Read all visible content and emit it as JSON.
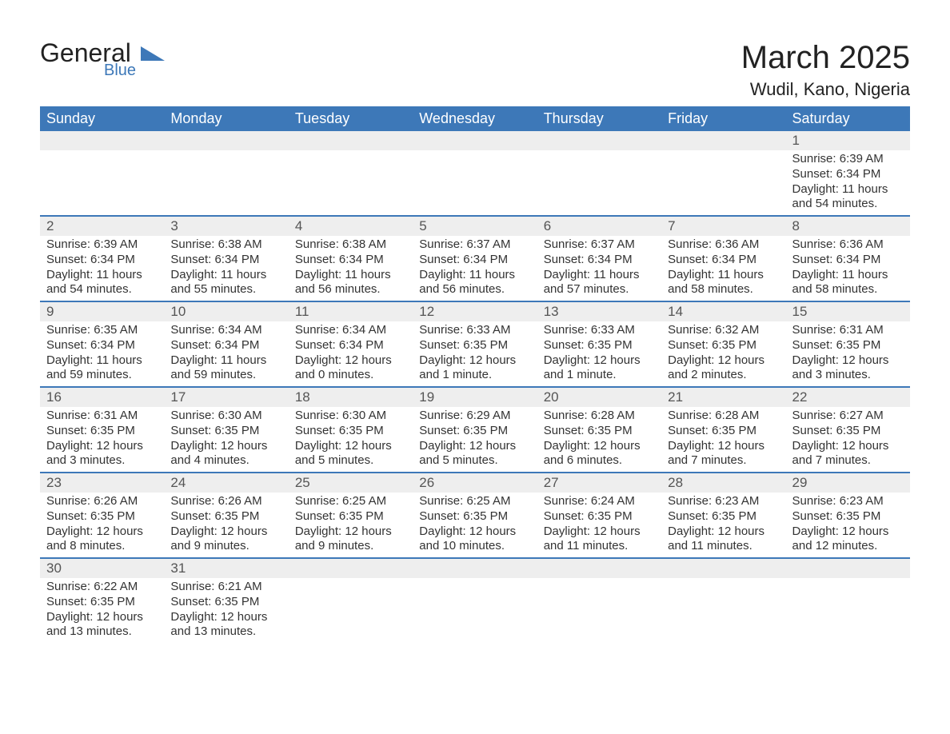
{
  "logo": {
    "text1": "General",
    "text2": "Blue",
    "icon_color": "#3d78b8"
  },
  "title": "March 2025",
  "location": "Wudil, Kano, Nigeria",
  "colors": {
    "header_bg": "#3d78b8",
    "header_text": "#ffffff",
    "row_divider": "#3d78b8",
    "daynum_bg": "#eeeeee",
    "body_text": "#333333",
    "page_bg": "#ffffff"
  },
  "typography": {
    "title_fontsize": 40,
    "location_fontsize": 22,
    "dayheader_fontsize": 18,
    "daynum_fontsize": 17,
    "body_fontsize": 15
  },
  "weekdays": [
    "Sunday",
    "Monday",
    "Tuesday",
    "Wednesday",
    "Thursday",
    "Friday",
    "Saturday"
  ],
  "weeks": [
    [
      null,
      null,
      null,
      null,
      null,
      null,
      {
        "n": "1",
        "sunrise": "Sunrise: 6:39 AM",
        "sunset": "Sunset: 6:34 PM",
        "daylight": "Daylight: 11 hours and 54 minutes."
      }
    ],
    [
      {
        "n": "2",
        "sunrise": "Sunrise: 6:39 AM",
        "sunset": "Sunset: 6:34 PM",
        "daylight": "Daylight: 11 hours and 54 minutes."
      },
      {
        "n": "3",
        "sunrise": "Sunrise: 6:38 AM",
        "sunset": "Sunset: 6:34 PM",
        "daylight": "Daylight: 11 hours and 55 minutes."
      },
      {
        "n": "4",
        "sunrise": "Sunrise: 6:38 AM",
        "sunset": "Sunset: 6:34 PM",
        "daylight": "Daylight: 11 hours and 56 minutes."
      },
      {
        "n": "5",
        "sunrise": "Sunrise: 6:37 AM",
        "sunset": "Sunset: 6:34 PM",
        "daylight": "Daylight: 11 hours and 56 minutes."
      },
      {
        "n": "6",
        "sunrise": "Sunrise: 6:37 AM",
        "sunset": "Sunset: 6:34 PM",
        "daylight": "Daylight: 11 hours and 57 minutes."
      },
      {
        "n": "7",
        "sunrise": "Sunrise: 6:36 AM",
        "sunset": "Sunset: 6:34 PM",
        "daylight": "Daylight: 11 hours and 58 minutes."
      },
      {
        "n": "8",
        "sunrise": "Sunrise: 6:36 AM",
        "sunset": "Sunset: 6:34 PM",
        "daylight": "Daylight: 11 hours and 58 minutes."
      }
    ],
    [
      {
        "n": "9",
        "sunrise": "Sunrise: 6:35 AM",
        "sunset": "Sunset: 6:34 PM",
        "daylight": "Daylight: 11 hours and 59 minutes."
      },
      {
        "n": "10",
        "sunrise": "Sunrise: 6:34 AM",
        "sunset": "Sunset: 6:34 PM",
        "daylight": "Daylight: 11 hours and 59 minutes."
      },
      {
        "n": "11",
        "sunrise": "Sunrise: 6:34 AM",
        "sunset": "Sunset: 6:34 PM",
        "daylight": "Daylight: 12 hours and 0 minutes."
      },
      {
        "n": "12",
        "sunrise": "Sunrise: 6:33 AM",
        "sunset": "Sunset: 6:35 PM",
        "daylight": "Daylight: 12 hours and 1 minute."
      },
      {
        "n": "13",
        "sunrise": "Sunrise: 6:33 AM",
        "sunset": "Sunset: 6:35 PM",
        "daylight": "Daylight: 12 hours and 1 minute."
      },
      {
        "n": "14",
        "sunrise": "Sunrise: 6:32 AM",
        "sunset": "Sunset: 6:35 PM",
        "daylight": "Daylight: 12 hours and 2 minutes."
      },
      {
        "n": "15",
        "sunrise": "Sunrise: 6:31 AM",
        "sunset": "Sunset: 6:35 PM",
        "daylight": "Daylight: 12 hours and 3 minutes."
      }
    ],
    [
      {
        "n": "16",
        "sunrise": "Sunrise: 6:31 AM",
        "sunset": "Sunset: 6:35 PM",
        "daylight": "Daylight: 12 hours and 3 minutes."
      },
      {
        "n": "17",
        "sunrise": "Sunrise: 6:30 AM",
        "sunset": "Sunset: 6:35 PM",
        "daylight": "Daylight: 12 hours and 4 minutes."
      },
      {
        "n": "18",
        "sunrise": "Sunrise: 6:30 AM",
        "sunset": "Sunset: 6:35 PM",
        "daylight": "Daylight: 12 hours and 5 minutes."
      },
      {
        "n": "19",
        "sunrise": "Sunrise: 6:29 AM",
        "sunset": "Sunset: 6:35 PM",
        "daylight": "Daylight: 12 hours and 5 minutes."
      },
      {
        "n": "20",
        "sunrise": "Sunrise: 6:28 AM",
        "sunset": "Sunset: 6:35 PM",
        "daylight": "Daylight: 12 hours and 6 minutes."
      },
      {
        "n": "21",
        "sunrise": "Sunrise: 6:28 AM",
        "sunset": "Sunset: 6:35 PM",
        "daylight": "Daylight: 12 hours and 7 minutes."
      },
      {
        "n": "22",
        "sunrise": "Sunrise: 6:27 AM",
        "sunset": "Sunset: 6:35 PM",
        "daylight": "Daylight: 12 hours and 7 minutes."
      }
    ],
    [
      {
        "n": "23",
        "sunrise": "Sunrise: 6:26 AM",
        "sunset": "Sunset: 6:35 PM",
        "daylight": "Daylight: 12 hours and 8 minutes."
      },
      {
        "n": "24",
        "sunrise": "Sunrise: 6:26 AM",
        "sunset": "Sunset: 6:35 PM",
        "daylight": "Daylight: 12 hours and 9 minutes."
      },
      {
        "n": "25",
        "sunrise": "Sunrise: 6:25 AM",
        "sunset": "Sunset: 6:35 PM",
        "daylight": "Daylight: 12 hours and 9 minutes."
      },
      {
        "n": "26",
        "sunrise": "Sunrise: 6:25 AM",
        "sunset": "Sunset: 6:35 PM",
        "daylight": "Daylight: 12 hours and 10 minutes."
      },
      {
        "n": "27",
        "sunrise": "Sunrise: 6:24 AM",
        "sunset": "Sunset: 6:35 PM",
        "daylight": "Daylight: 12 hours and 11 minutes."
      },
      {
        "n": "28",
        "sunrise": "Sunrise: 6:23 AM",
        "sunset": "Sunset: 6:35 PM",
        "daylight": "Daylight: 12 hours and 11 minutes."
      },
      {
        "n": "29",
        "sunrise": "Sunrise: 6:23 AM",
        "sunset": "Sunset: 6:35 PM",
        "daylight": "Daylight: 12 hours and 12 minutes."
      }
    ],
    [
      {
        "n": "30",
        "sunrise": "Sunrise: 6:22 AM",
        "sunset": "Sunset: 6:35 PM",
        "daylight": "Daylight: 12 hours and 13 minutes."
      },
      {
        "n": "31",
        "sunrise": "Sunrise: 6:21 AM",
        "sunset": "Sunset: 6:35 PM",
        "daylight": "Daylight: 12 hours and 13 minutes."
      },
      null,
      null,
      null,
      null,
      null
    ]
  ]
}
